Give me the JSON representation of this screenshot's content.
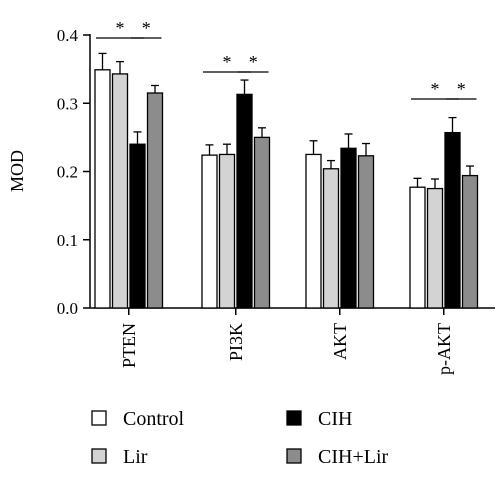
{
  "chart_data": {
    "type": "bar",
    "ylabel": "MOD",
    "ylim": [
      0,
      0.4
    ],
    "yticks": [
      "0.0",
      "0.1",
      "0.2",
      "0.3",
      "0.4"
    ],
    "categories": [
      "PTEN",
      "PI3K",
      "AKT",
      "p-AKT"
    ],
    "series": [
      {
        "name": "Control",
        "color": "#ffffff",
        "values": [
          0.349,
          0.224,
          0.225,
          0.177
        ],
        "errors": [
          0.024,
          0.015,
          0.02,
          0.013
        ]
      },
      {
        "name": "Lir",
        "color": "#d3d3d3",
        "values": [
          0.343,
          0.225,
          0.204,
          0.175
        ],
        "errors": [
          0.018,
          0.015,
          0.012,
          0.014
        ]
      },
      {
        "name": "CIH",
        "color": "#000000",
        "values": [
          0.24,
          0.313,
          0.234,
          0.257
        ],
        "errors": [
          0.018,
          0.021,
          0.021,
          0.022
        ]
      },
      {
        "name": "CIH+Lir",
        "color": "#8c8c8c",
        "values": [
          0.315,
          0.25,
          0.223,
          0.194
        ],
        "errors": [
          0.011,
          0.014,
          0.018,
          0.014
        ]
      }
    ],
    "significance": [
      {
        "category": "PTEN",
        "from_series": 0,
        "to_series": 2,
        "label": "*"
      },
      {
        "category": "PTEN",
        "from_series": 2,
        "to_series": 3,
        "label": "*"
      },
      {
        "category": "PI3K",
        "from_series": 0,
        "to_series": 2,
        "label": "*"
      },
      {
        "category": "PI3K",
        "from_series": 2,
        "to_series": 3,
        "label": "*"
      },
      {
        "category": "p-AKT",
        "from_series": 0,
        "to_series": 2,
        "label": "*"
      },
      {
        "category": "p-AKT",
        "from_series": 2,
        "to_series": 3,
        "label": "*"
      }
    ],
    "legend_position": "bottom",
    "grid": false
  }
}
